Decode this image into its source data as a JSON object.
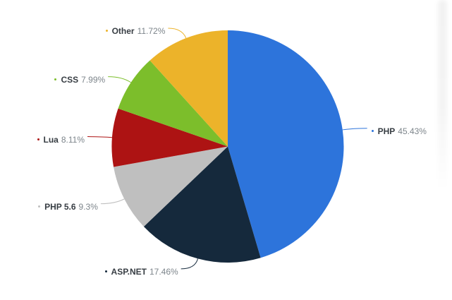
{
  "figure": {
    "background": "#ffffff",
    "text_color_name": "#373d43",
    "text_color_percent": "#7d858b"
  },
  "chart_data": {
    "type": "pie",
    "direction": "clockwise",
    "start_angle_deg": 0,
    "legend_position": "callout-labels",
    "title": "",
    "slices": [
      {
        "label": "PHP",
        "value": 45.43,
        "display": "45.43%",
        "color": "#2d74db"
      },
      {
        "label": "ASP.NET",
        "value": 17.46,
        "display": "17.46%",
        "color": "#15293c"
      },
      {
        "label": "PHP 5.6",
        "value": 9.3,
        "display": "9.3%",
        "color": "#bfbfbf"
      },
      {
        "label": "Lua",
        "value": 8.11,
        "display": "8.11%",
        "color": "#ad1313"
      },
      {
        "label": "CSS",
        "value": 7.99,
        "display": "7.99%",
        "color": "#7cbe2b"
      },
      {
        "label": "Other",
        "value": 11.72,
        "display": "11.72%",
        "color": "#ecb32a"
      }
    ]
  }
}
